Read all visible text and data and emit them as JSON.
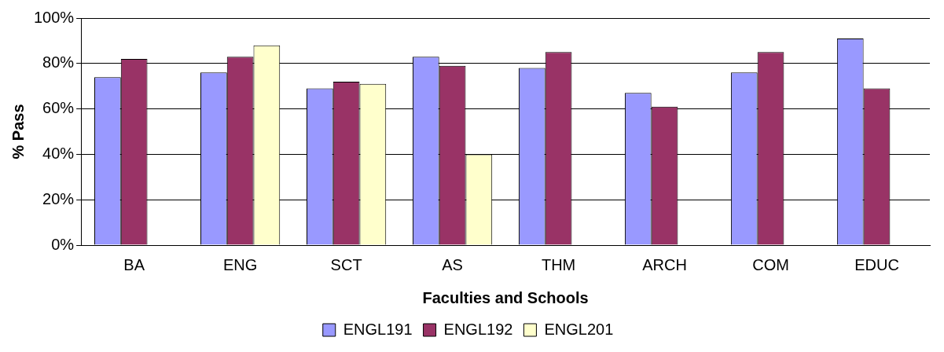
{
  "chart_data": {
    "type": "bar",
    "xlabel": "Faculties and Schools",
    "ylabel": "% Pass",
    "categories": [
      "BA",
      "ENG",
      "SCT",
      "AS",
      "THM",
      "ARCH",
      "COM",
      "EDUC"
    ],
    "series": [
      {
        "name": "ENGL191",
        "color": "#9999ff",
        "values": [
          74,
          76,
          69,
          83,
          78,
          67,
          76,
          91
        ]
      },
      {
        "name": "ENGL192",
        "color": "#993366",
        "values": [
          82,
          83,
          72,
          79,
          85,
          61,
          85,
          69
        ]
      },
      {
        "name": "ENGL201",
        "color": "#ffffcc",
        "values": [
          null,
          88,
          71,
          40,
          null,
          null,
          null,
          null
        ]
      }
    ],
    "ylim": [
      0,
      100
    ],
    "yticks": [
      {
        "value": 0,
        "label": "0%"
      },
      {
        "value": 20,
        "label": "20%"
      },
      {
        "value": 40,
        "label": "40%"
      },
      {
        "value": 60,
        "label": "60%"
      },
      {
        "value": 80,
        "label": "80%"
      },
      {
        "value": 100,
        "label": "100%"
      }
    ],
    "grid": "y",
    "legend": "bottom"
  }
}
